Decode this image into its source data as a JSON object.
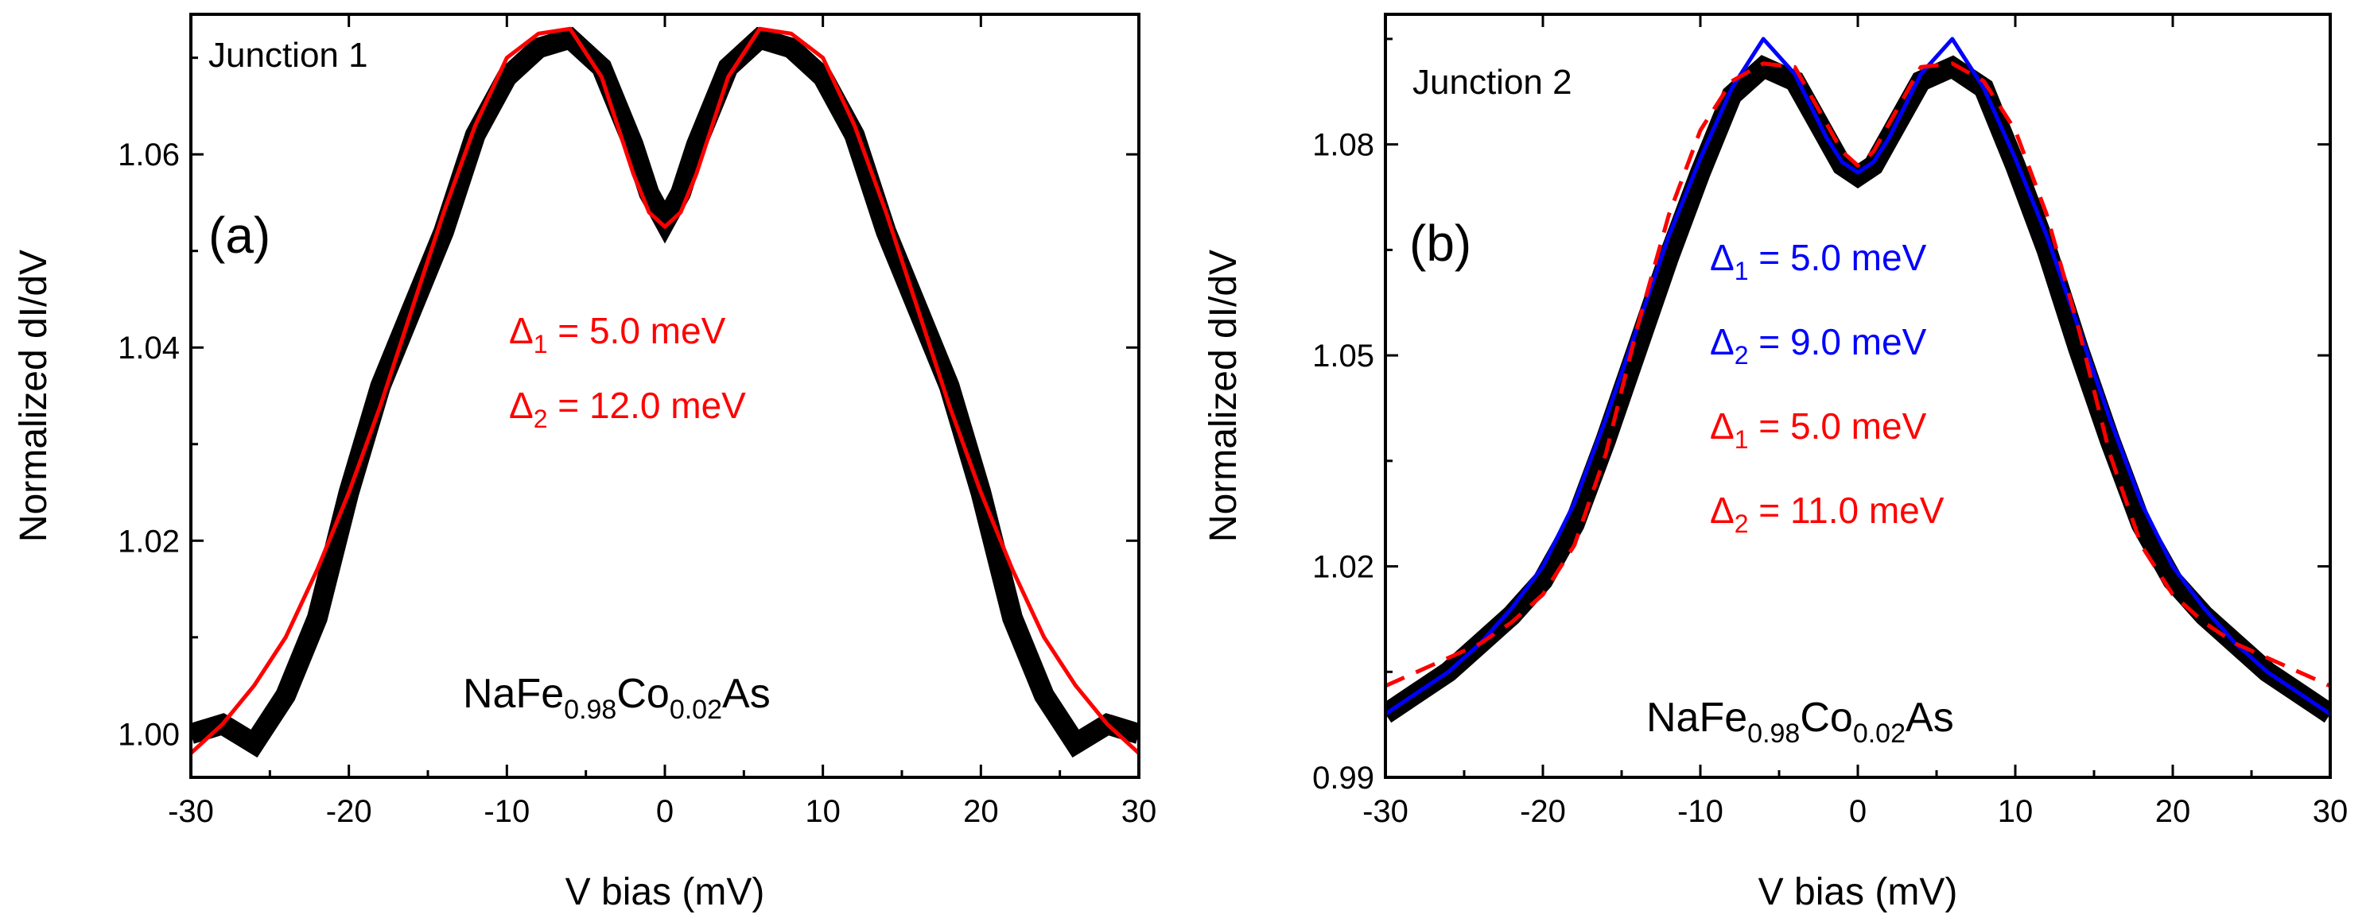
{
  "chart_data": [
    {
      "type": "line",
      "panel_label": "(a)",
      "junction": "Junction 1",
      "xlabel": "V bias (mV)",
      "ylabel": "Normalized dI/dV",
      "xlim": [
        -30,
        30
      ],
      "ylim": [
        0.9955,
        1.0745
      ],
      "x_ticks": [
        -30,
        -20,
        -10,
        0,
        10,
        20,
        30
      ],
      "y_ticks": [
        1.0,
        1.02,
        1.04,
        1.06
      ],
      "y_tick_labels": [
        "1.00",
        "1.02",
        "1.04",
        "1.06"
      ],
      "formula": {
        "base": "NaFe",
        "sub1": "0.98",
        "mid": "Co",
        "sub2": "0.02",
        "tail": "As"
      },
      "series": [
        {
          "name": "data",
          "color": "#000000",
          "style": "thick",
          "x": [
            -30,
            -28,
            -26,
            -24,
            -22,
            -20,
            -18,
            -16,
            -14,
            -12,
            -10,
            -8,
            -6,
            -4,
            -2,
            -1,
            0,
            1,
            2,
            4,
            6,
            8,
            10,
            12,
            14,
            16,
            18,
            20,
            22,
            24,
            26,
            28,
            30
          ],
          "y": [
            1.0,
            1.001,
            0.999,
            1.004,
            1.012,
            1.025,
            1.036,
            1.044,
            1.052,
            1.062,
            1.068,
            1.071,
            1.072,
            1.069,
            1.061,
            1.056,
            1.053,
            1.056,
            1.061,
            1.069,
            1.072,
            1.071,
            1.068,
            1.062,
            1.052,
            1.044,
            1.036,
            1.025,
            1.012,
            1.004,
            0.999,
            1.001,
            1.0
          ]
        },
        {
          "name": "fit",
          "color": "#ff0000",
          "style": "solid",
          "x": [
            -30,
            -28,
            -26,
            -24,
            -22,
            -20,
            -18,
            -16,
            -14,
            -12,
            -10,
            -8,
            -6,
            -4,
            -2,
            -1,
            0,
            1,
            2,
            4,
            6,
            8,
            10,
            12,
            14,
            16,
            18,
            20,
            22,
            24,
            26,
            28,
            30
          ],
          "y": [
            0.998,
            1.001,
            1.005,
            1.01,
            1.017,
            1.025,
            1.034,
            1.044,
            1.054,
            1.063,
            1.07,
            1.0725,
            1.073,
            1.068,
            1.058,
            1.054,
            1.0525,
            1.054,
            1.058,
            1.068,
            1.073,
            1.0725,
            1.07,
            1.063,
            1.054,
            1.044,
            1.034,
            1.025,
            1.017,
            1.01,
            1.005,
            1.001,
            0.998
          ]
        }
      ],
      "annotations": [
        {
          "sym": "Δ",
          "sub": "1",
          "text": " = 5.0 meV",
          "color": "#ff0000"
        },
        {
          "sym": "Δ",
          "sub": "2",
          "text": " = 12.0 meV",
          "color": "#ff0000"
        }
      ]
    },
    {
      "type": "line",
      "panel_label": "(b)",
      "junction": "Junction 2",
      "xlabel": "V bias (mV)",
      "ylabel": "Normalized dI/dV",
      "xlim": [
        -30,
        30
      ],
      "ylim": [
        0.99,
        1.0985
      ],
      "x_ticks": [
        -30,
        -20,
        -10,
        0,
        10,
        20,
        30
      ],
      "y_ticks": [
        0.99,
        1.02,
        1.05,
        1.08
      ],
      "y_tick_labels": [
        "0.99",
        "1.02",
        "1.05",
        "1.08"
      ],
      "formula": {
        "base": "NaFe",
        "sub1": "0.98",
        "mid": "Co",
        "sub2": "0.02",
        "tail": "As"
      },
      "series": [
        {
          "name": "data",
          "color": "#000000",
          "style": "thick",
          "x": [
            -30,
            -28,
            -26,
            -24,
            -22,
            -20,
            -18,
            -16,
            -14,
            -12,
            -10,
            -8,
            -6,
            -4,
            -2,
            -1,
            0,
            1,
            2,
            4,
            6,
            8,
            10,
            12,
            14,
            16,
            18,
            20,
            22,
            24,
            26,
            28,
            30
          ],
          "y": [
            0.999,
            1.002,
            1.005,
            1.009,
            1.013,
            1.018,
            1.026,
            1.038,
            1.051,
            1.064,
            1.076,
            1.087,
            1.091,
            1.089,
            1.081,
            1.077,
            1.0755,
            1.077,
            1.081,
            1.089,
            1.091,
            1.088,
            1.077,
            1.065,
            1.051,
            1.038,
            1.026,
            1.018,
            1.013,
            1.009,
            1.005,
            1.002,
            0.999
          ]
        },
        {
          "name": "fit-blue",
          "color": "#0000ff",
          "style": "solid",
          "x": [
            -30,
            -28,
            -26,
            -24,
            -22,
            -20,
            -18,
            -16,
            -14,
            -12,
            -10,
            -8,
            -6,
            -4,
            -2,
            -1,
            0,
            1,
            2,
            4,
            6,
            8,
            10,
            12,
            14,
            16,
            18,
            20,
            22,
            24,
            26,
            28,
            30
          ],
          "y": [
            0.999,
            1.002,
            1.005,
            1.009,
            1.014,
            1.02,
            1.029,
            1.041,
            1.054,
            1.067,
            1.078,
            1.088,
            1.095,
            1.09,
            1.081,
            1.0775,
            1.076,
            1.0775,
            1.081,
            1.09,
            1.095,
            1.088,
            1.078,
            1.067,
            1.054,
            1.041,
            1.029,
            1.02,
            1.014,
            1.009,
            1.005,
            1.002,
            0.999
          ]
        },
        {
          "name": "fit-red-dashed",
          "color": "#ff0000",
          "style": "dashed",
          "x": [
            -30,
            -28,
            -26,
            -24,
            -22,
            -20,
            -18,
            -16,
            -14,
            -12,
            -10,
            -8,
            -6,
            -4,
            -2,
            -1,
            0,
            1,
            2,
            4,
            6,
            8,
            10,
            12,
            14,
            16,
            18,
            20,
            22,
            24,
            26,
            28,
            30
          ],
          "y": [
            1.003,
            1.005,
            1.007,
            1.009,
            1.012,
            1.016,
            1.023,
            1.036,
            1.054,
            1.07,
            1.082,
            1.089,
            1.0915,
            1.091,
            1.083,
            1.079,
            1.077,
            1.079,
            1.083,
            1.091,
            1.0915,
            1.089,
            1.082,
            1.07,
            1.054,
            1.036,
            1.023,
            1.016,
            1.012,
            1.009,
            1.007,
            1.005,
            1.003
          ]
        }
      ],
      "annotations": [
        {
          "sym": "Δ",
          "sub": "1",
          "text": " = 5.0 meV",
          "color": "#0000ff"
        },
        {
          "sym": "Δ",
          "sub": "2",
          "text": " = 9.0 meV",
          "color": "#0000ff"
        },
        {
          "sym": "Δ",
          "sub": "1",
          "text": " = 5.0 meV",
          "color": "#ff0000"
        },
        {
          "sym": "Δ",
          "sub": "2",
          "text": " = 11.0 meV",
          "color": "#ff0000"
        }
      ]
    }
  ]
}
